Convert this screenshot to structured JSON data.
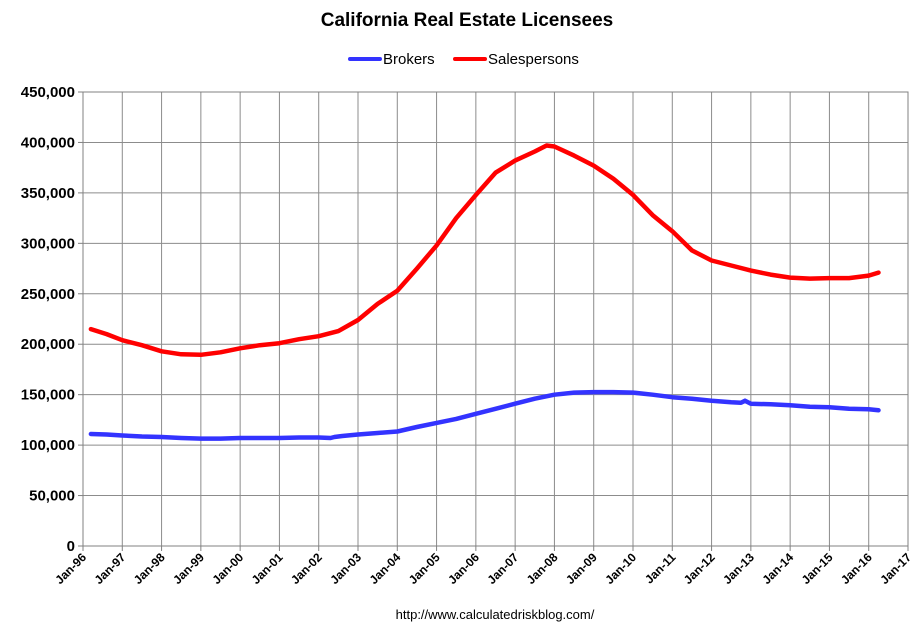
{
  "chart_data": {
    "type": "line",
    "title": "California Real Estate Licensees",
    "source": "http://www.calculatedriskblog.com/",
    "legend_position": "top-center",
    "grid": true,
    "ylim": [
      0,
      450000
    ],
    "y_ticks": [
      "0",
      "50,000",
      "100,000",
      "150,000",
      "200,000",
      "250,000",
      "300,000",
      "350,000",
      "400,000",
      "450,000"
    ],
    "x_ticks": [
      "Jan-96",
      "Jan-97",
      "Jan-98",
      "Jan-99",
      "Jan-00",
      "Jan-01",
      "Jan-02",
      "Jan-03",
      "Jan-04",
      "Jan-05",
      "Jan-06",
      "Jan-07",
      "Jan-08",
      "Jan-09",
      "Jan-10",
      "Jan-11",
      "Jan-12",
      "Jan-13",
      "Jan-14",
      "Jan-15",
      "Jan-16",
      "Jan-17"
    ],
    "x_start_year": 1996,
    "x_end_year": 2017,
    "series": [
      {
        "name": "Brokers",
        "color": "#3333ff",
        "x": [
          1996.2,
          1996.6,
          1997.0,
          1997.5,
          1998.0,
          1998.5,
          1999.0,
          1999.5,
          2000.0,
          2000.5,
          2001.0,
          2001.5,
          2002.0,
          2002.3,
          2002.4,
          2002.6,
          2003.0,
          2003.5,
          2004.0,
          2004.5,
          2005.0,
          2005.5,
          2006.0,
          2006.5,
          2007.0,
          2007.5,
          2008.0,
          2008.5,
          2009.0,
          2009.5,
          2010.0,
          2010.5,
          2011.0,
          2011.5,
          2012.0,
          2012.5,
          2012.75,
          2012.85,
          2013.0,
          2013.5,
          2014.0,
          2014.5,
          2015.0,
          2015.5,
          2016.0,
          2016.25
        ],
        "values": [
          111000,
          110500,
          109500,
          108500,
          108000,
          107000,
          106500,
          106500,
          107000,
          107000,
          107000,
          107500,
          107500,
          107000,
          108000,
          109000,
          110500,
          112000,
          113500,
          118000,
          122000,
          126000,
          131000,
          136000,
          141000,
          146000,
          150000,
          152000,
          152500,
          152500,
          152000,
          150000,
          147500,
          146000,
          144000,
          142500,
          142000,
          144000,
          141000,
          140500,
          139500,
          138000,
          137500,
          136000,
          135500,
          134500
        ]
      },
      {
        "name": "Salespersons",
        "color": "#ff0000",
        "x": [
          1996.2,
          1996.6,
          1997.0,
          1997.5,
          1998.0,
          1998.5,
          1999.0,
          1999.5,
          2000.0,
          2000.5,
          2001.0,
          2001.5,
          2002.0,
          2002.5,
          2003.0,
          2003.5,
          2004.0,
          2004.5,
          2005.0,
          2005.5,
          2006.0,
          2006.5,
          2007.0,
          2007.5,
          2007.8,
          2008.0,
          2008.5,
          2009.0,
          2009.5,
          2010.0,
          2010.5,
          2011.0,
          2011.5,
          2012.0,
          2012.5,
          2013.0,
          2013.5,
          2014.0,
          2014.5,
          2015.0,
          2015.5,
          2016.0,
          2016.25
        ],
        "values": [
          215000,
          210000,
          204000,
          199000,
          193000,
          190000,
          189500,
          192000,
          196000,
          199000,
          201000,
          205000,
          208000,
          213000,
          224000,
          240000,
          253000,
          275000,
          298000,
          325000,
          348000,
          370000,
          382000,
          391000,
          397000,
          396000,
          387000,
          377000,
          364000,
          348000,
          328000,
          312000,
          293000,
          283000,
          278000,
          273000,
          269000,
          266000,
          265000,
          265500,
          265500,
          268000,
          271000
        ]
      }
    ]
  }
}
